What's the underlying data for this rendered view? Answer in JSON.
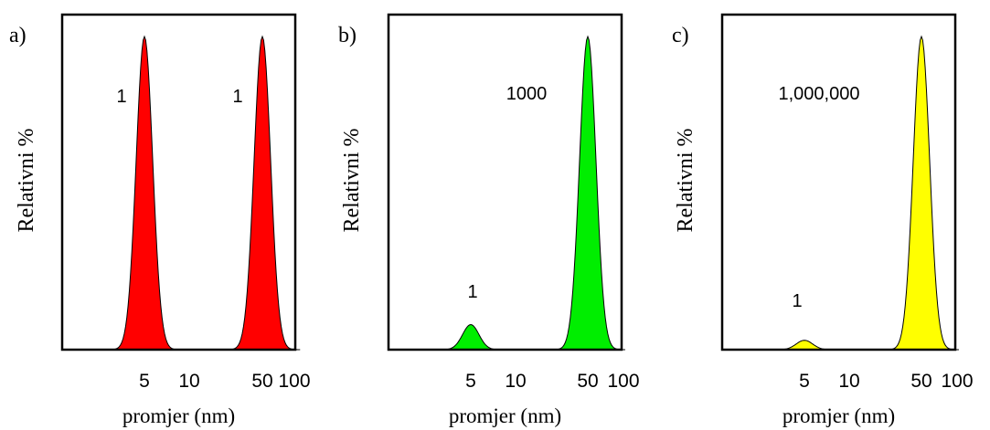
{
  "chart_data": [
    {
      "type": "area",
      "panel_label": "a)",
      "ylabel": "Relativni %",
      "xlabel": "promjer (nm)",
      "x_scale": "log",
      "x_ticks": [
        5,
        10,
        50,
        100
      ],
      "x_tick_labels": [
        "5",
        "10",
        "50",
        "100"
      ],
      "fill_color": "#ff0000",
      "peaks": [
        {
          "x": 5,
          "height": 1.0,
          "label": "1"
        },
        {
          "x": 50,
          "height": 1.0,
          "label": "1"
        }
      ]
    },
    {
      "type": "area",
      "panel_label": "b)",
      "ylabel": "Relativni %",
      "xlabel": "promjer (nm)",
      "x_scale": "log",
      "x_ticks": [
        5,
        10,
        50,
        100
      ],
      "x_tick_labels": [
        "5",
        "10",
        "50",
        "100"
      ],
      "fill_color": "#00ee00",
      "peaks": [
        {
          "x": 5,
          "height": 0.08,
          "label": "1"
        },
        {
          "x": 50,
          "height": 1.0,
          "label": "1000"
        }
      ]
    },
    {
      "type": "area",
      "panel_label": "c)",
      "ylabel": "Relativni %",
      "xlabel": "promjer (nm)",
      "x_scale": "log",
      "x_ticks": [
        5,
        10,
        50,
        100
      ],
      "x_tick_labels": [
        "5",
        "10",
        "50",
        "100"
      ],
      "fill_color": "#ffff00",
      "peaks": [
        {
          "x": 5,
          "height": 0.03,
          "label": "1"
        },
        {
          "x": 50,
          "height": 1.0,
          "label": "1,000,000"
        }
      ]
    }
  ]
}
